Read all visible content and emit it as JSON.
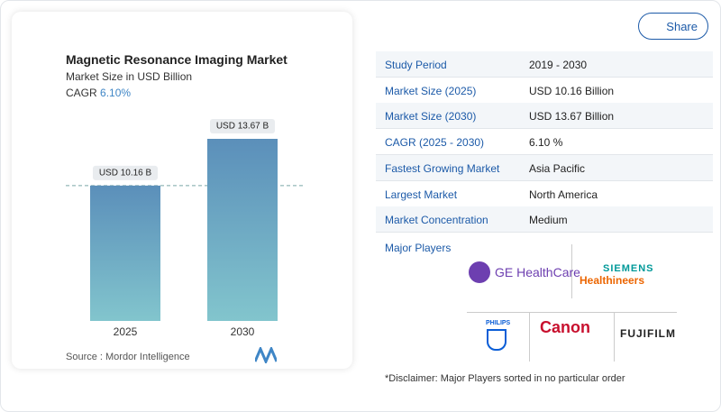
{
  "chart_data": {
    "type": "bar",
    "title": "Magnetic Resonance Imaging Market",
    "subtitle": "Market Size in USD Billion",
    "cagr_label": "CAGR",
    "cagr_value": "6.10%",
    "categories": [
      "2025",
      "2030"
    ],
    "values": [
      10.16,
      13.67
    ],
    "value_labels": [
      "USD 10.16 B",
      "USD 13.67 B"
    ],
    "source": "Source :  Mordor Intelligence"
  },
  "share": "Share",
  "table": {
    "rows": [
      [
        "Study Period",
        "2019 - 2030"
      ],
      [
        "Market Size (2025)",
        "USD 10.16 Billion"
      ],
      [
        "Market Size (2030)",
        "USD 13.67 Billion"
      ],
      [
        "CAGR (2025 - 2030)",
        "6.10 %"
      ],
      [
        "Fastest Growing Market",
        "Asia Pacific"
      ],
      [
        "Largest Market",
        "North America"
      ],
      [
        "Market Concentration",
        "Medium"
      ]
    ]
  },
  "players": {
    "title": "Major Players",
    "ge": "GE HealthCare",
    "siemens_top": "SIEMENS",
    "siemens_bottom": "Healthineers",
    "philips": "PHILIPS",
    "canon": "Canon",
    "fujifilm": "FUJIFILM"
  },
  "disclaimer": "*Disclaimer: Major Players sorted in no particular order"
}
